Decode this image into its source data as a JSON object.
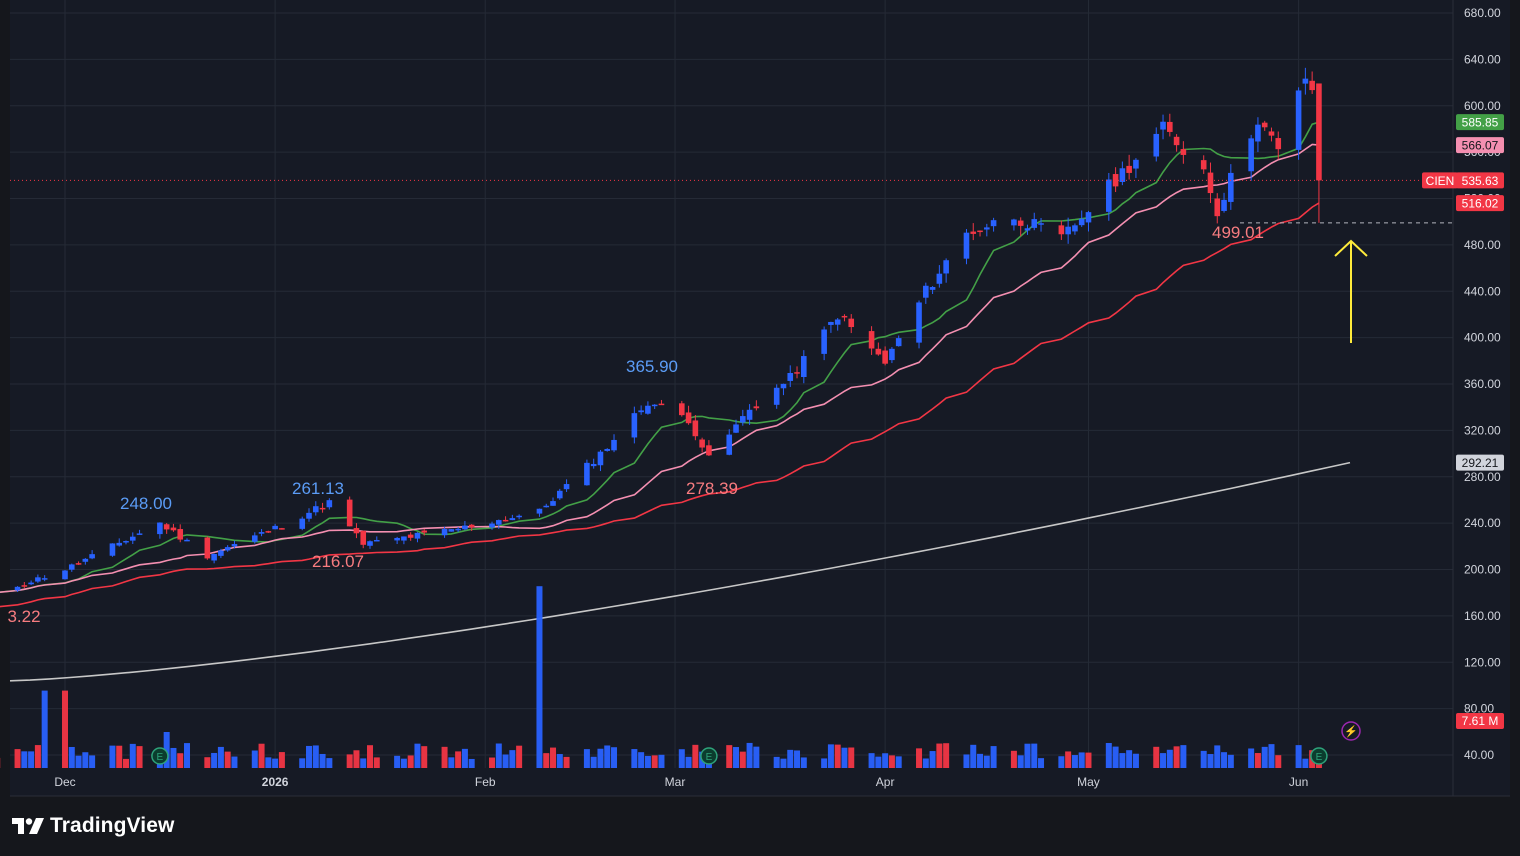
{
  "app": {
    "brand": "TradingView",
    "symbol": "CIEN"
  },
  "colors": {
    "page": "#15171c",
    "pane": "#161a25",
    "grid": "#252a36",
    "up": "#2962ff",
    "down": "#f23645",
    "axis_text": "#d1d4dc",
    "sma10": "#43a047",
    "sma21": "#f48fb1",
    "sma50": "#f23645",
    "sma200": "#c7c7c7",
    "arrow": "#ffeb3b"
  },
  "price_axis": {
    "ticks": [
      "680.00",
      "640.00",
      "600.00",
      "560.00",
      "520.00",
      "480.00",
      "440.00",
      "400.00",
      "360.00",
      "320.00",
      "280.00",
      "240.00",
      "200.00",
      "160.00",
      "120.00",
      "80.00",
      "40.00"
    ]
  },
  "time_axis": {
    "labels": [
      "Dec",
      "2026",
      "Feb",
      "Mar",
      "Apr",
      "May",
      "Jun"
    ]
  },
  "price_labels": {
    "last": {
      "symbol": "CIEN",
      "value": "535.63"
    },
    "ma_a": "585.85",
    "ma_b": "566.07",
    "ma_c": "516.02",
    "ma_d": "292.21",
    "volume": "7.61 M"
  },
  "annotations": {
    "h1": "248.00",
    "h2": "261.13",
    "h3": "365.90",
    "l0": "3.22",
    "l1": "216.07",
    "l2": "278.39",
    "l3": "499.01"
  },
  "chart_data": {
    "type": "candlestick",
    "symbol": "CIEN",
    "x_range": [
      "Nov 2025",
      "Jun 2026"
    ],
    "y_axis": {
      "min": 40,
      "max": 680,
      "step": 40,
      "side": "right"
    },
    "last_price": 535.63,
    "moving_averages": [
      {
        "color": "green",
        "last": 585.85
      },
      {
        "color": "pink",
        "last": 566.07
      },
      {
        "color": "red",
        "last": 516.02
      },
      {
        "color": "gray",
        "last": 292.21
      }
    ],
    "swing_points": [
      {
        "type": "high",
        "value": 248.0,
        "month": "Dec"
      },
      {
        "type": "high",
        "value": 261.13,
        "month": "Jan"
      },
      {
        "type": "low",
        "value": 216.07,
        "month": "Jan"
      },
      {
        "type": "high",
        "value": 365.9,
        "month": "Feb"
      },
      {
        "type": "low",
        "value": 278.39,
        "month": "Mar"
      },
      {
        "type": "low",
        "value": 499.01,
        "month": "May"
      }
    ],
    "path_anchors": [
      {
        "date": "2025-11-20",
        "close": 178
      },
      {
        "date": "2025-12-01",
        "close": 200
      },
      {
        "date": "2025-12-15",
        "close": 240
      },
      {
        "date": "2025-12-22",
        "close": 212
      },
      {
        "date": "2026-01-02",
        "close": 238
      },
      {
        "date": "2026-01-09",
        "close": 258
      },
      {
        "date": "2026-01-14",
        "close": 222
      },
      {
        "date": "2026-01-27",
        "close": 234
      },
      {
        "date": "2026-02-09",
        "close": 250
      },
      {
        "date": "2026-02-18",
        "close": 300
      },
      {
        "date": "2026-02-25",
        "close": 345
      },
      {
        "date": "2026-03-03",
        "close": 330
      },
      {
        "date": "2026-03-06",
        "close": 295
      },
      {
        "date": "2026-03-12",
        "close": 338
      },
      {
        "date": "2026-03-18",
        "close": 365
      },
      {
        "date": "2026-03-25",
        "close": 420
      },
      {
        "date": "2026-04-01",
        "close": 378
      },
      {
        "date": "2026-04-07",
        "close": 440
      },
      {
        "date": "2026-04-13",
        "close": 490
      },
      {
        "date": "2026-04-20",
        "close": 505
      },
      {
        "date": "2026-04-27",
        "close": 485
      },
      {
        "date": "2026-05-04",
        "close": 530
      },
      {
        "date": "2026-05-12",
        "close": 580
      },
      {
        "date": "2026-05-18",
        "close": 545
      },
      {
        "date": "2026-05-20",
        "close": 510
      },
      {
        "date": "2026-05-26",
        "close": 590
      },
      {
        "date": "2026-05-29",
        "close": 560
      },
      {
        "date": "2026-06-02",
        "close": 625
      },
      {
        "date": "2026-06-03",
        "close": 615
      },
      {
        "date": "2026-06-04",
        "close": 535.63
      }
    ],
    "volume_spikes": [
      {
        "month": "Nov",
        "volume_m": 102
      },
      {
        "month": "Feb",
        "volume_m": 202
      }
    ],
    "volume_last_m": 7.61
  }
}
